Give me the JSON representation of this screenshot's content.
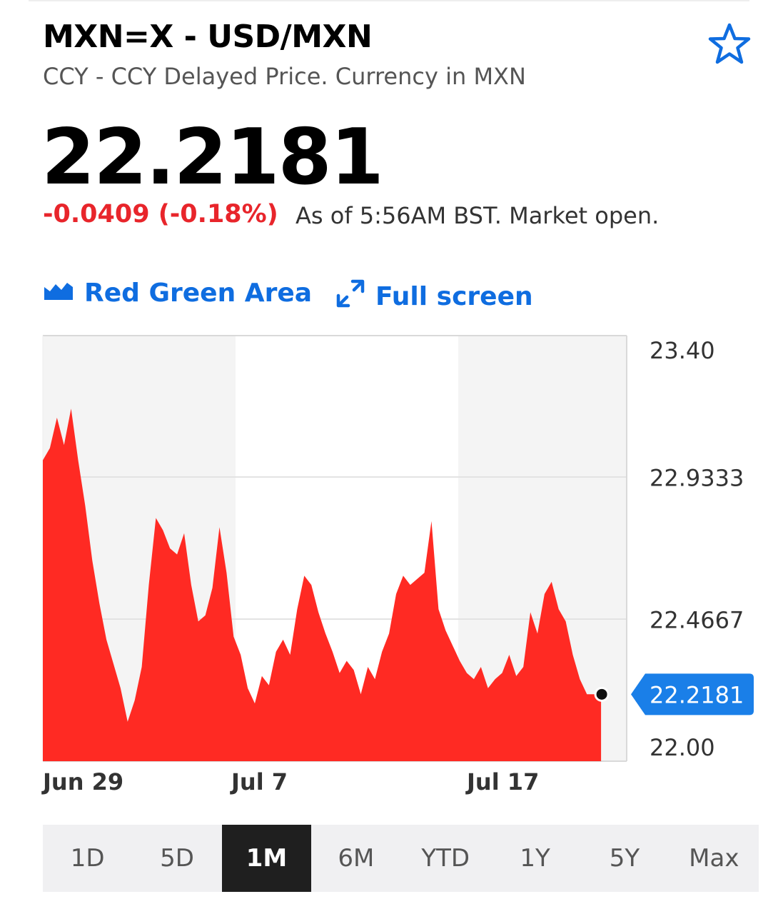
{
  "header": {
    "ticker": "MXN=X - USD/MXN",
    "subtitle": "CCY - CCY Delayed Price. Currency in MXN",
    "price": "22.2181",
    "change": "-0.0409 (-0.18%)",
    "as_of": "As of 5:56AM BST. Market open.",
    "star_icon": "star-outline-icon"
  },
  "toolbar": {
    "chart_type_label": "Red Green Area",
    "chart_type_icon": "area-chart-icon",
    "fullscreen_label": "Full screen",
    "fullscreen_icon": "expand-arrows-icon"
  },
  "colors": {
    "accent": "#0f6de0",
    "negative": "#e8252b",
    "area_fill": "#ff2a23",
    "active_range_bg": "#1f1f1f"
  },
  "chart_data": {
    "type": "area",
    "y_ticks": [
      "23.40",
      "22.9333",
      "22.4667",
      "22.00"
    ],
    "ylim": [
      22.0,
      23.4
    ],
    "x_ticks": [
      {
        "label": "Jun 29",
        "x": 0.0
      },
      {
        "label": "Jul 7",
        "x": 8.0
      },
      {
        "label": "Jul 17",
        "x": 18.0
      }
    ],
    "current_value_label": "22.2181",
    "series": [
      {
        "x": [
          0,
          0.3,
          0.6,
          0.9,
          1.2,
          1.5,
          1.8,
          2.1,
          2.4,
          2.7,
          3.0,
          3.3,
          3.6,
          3.9,
          4.2,
          4.5,
          4.8,
          5.1,
          5.4,
          5.7,
          6.0,
          6.3,
          6.6,
          6.9,
          7.2,
          7.5,
          7.8,
          8.1,
          8.4,
          8.7,
          9.0,
          9.3,
          9.6,
          9.9,
          10.2,
          10.5,
          10.8,
          11.1,
          11.4,
          11.7,
          12.0,
          12.3,
          12.6,
          12.9,
          13.2,
          13.5,
          13.8,
          14.1,
          14.4,
          14.7,
          15.0,
          15.3,
          15.6,
          15.9,
          16.2,
          16.5,
          16.8,
          17.1,
          17.4,
          17.7,
          18.0,
          18.3,
          18.6,
          18.9,
          19.2,
          19.5,
          19.8,
          20.1,
          20.4,
          20.7,
          21.0,
          21.3,
          21.6,
          21.9,
          22.2,
          22.5,
          22.8,
          23.1,
          23.4,
          23.7
        ],
        "values": [
          22.99,
          23.03,
          23.13,
          23.04,
          23.16,
          22.99,
          22.84,
          22.66,
          22.52,
          22.4,
          22.32,
          22.24,
          22.13,
          22.2,
          22.31,
          22.58,
          22.8,
          22.76,
          22.7,
          22.68,
          22.75,
          22.58,
          22.46,
          22.48,
          22.57,
          22.77,
          22.62,
          22.41,
          22.35,
          22.24,
          22.19,
          22.28,
          22.25,
          22.36,
          22.4,
          22.35,
          22.5,
          22.61,
          22.58,
          22.49,
          22.42,
          22.36,
          22.29,
          22.33,
          22.3,
          22.22,
          22.31,
          22.27,
          22.36,
          22.42,
          22.55,
          22.61,
          22.58,
          22.6,
          22.62,
          22.79,
          22.5,
          22.43,
          22.38,
          22.33,
          22.29,
          22.27,
          22.31,
          22.24,
          22.27,
          22.29,
          22.35,
          22.28,
          22.31,
          22.49,
          22.42,
          22.55,
          22.59,
          22.5,
          22.46,
          22.35,
          22.27,
          22.22,
          22.22,
          22.22
        ]
      }
    ]
  },
  "ranges": {
    "items": [
      "1D",
      "5D",
      "1M",
      "6M",
      "YTD",
      "1Y",
      "5Y",
      "Max"
    ],
    "selected": "1M"
  }
}
